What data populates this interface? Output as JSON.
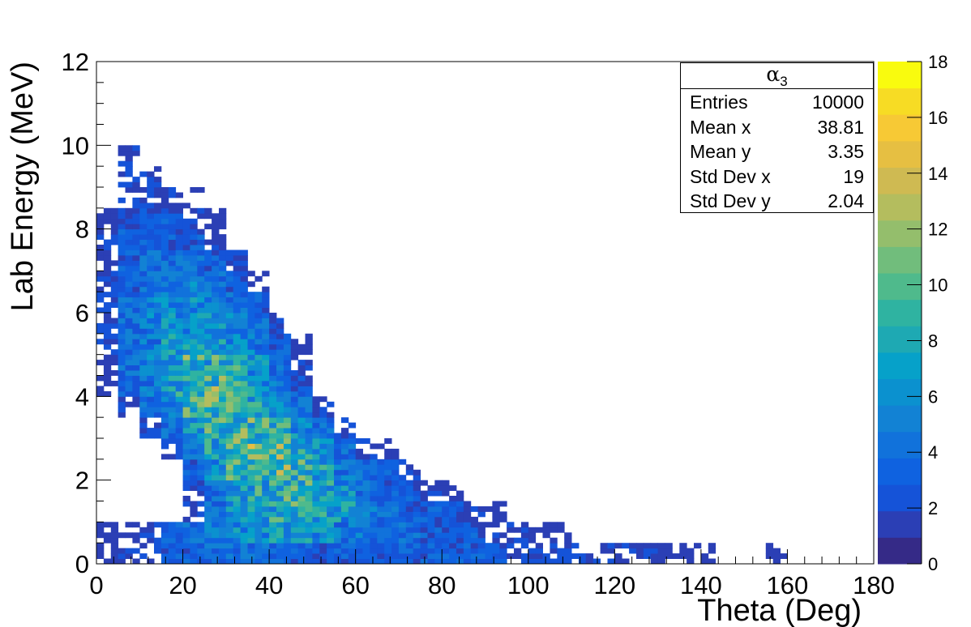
{
  "chart_data": {
    "type": "heatmap",
    "title": "α3",
    "xlabel": "Theta (Deg)",
    "ylabel": "Lab Energy (MeV)",
    "xlim": [
      0,
      180
    ],
    "ylim": [
      0,
      12
    ],
    "zlim": [
      0,
      18
    ],
    "x_ticks": [
      "0",
      "20",
      "40",
      "60",
      "80",
      "100",
      "120",
      "140",
      "160",
      "180"
    ],
    "y_ticks": [
      "0",
      "2",
      "4",
      "6",
      "8",
      "10",
      "12"
    ],
    "z_ticks": [
      "0",
      "2",
      "4",
      "6",
      "8",
      "10",
      "12",
      "14",
      "16",
      "18"
    ],
    "x_bin_width": 5,
    "y_bin_width": 0.5,
    "note": "approximate counts per fine bin, averaged over 5 deg x 0.5 MeV regions; rows from y=0 upward",
    "z": [
      [
        1,
        2,
        2,
        3,
        3,
        4,
        4,
        4,
        4,
        3,
        3,
        3,
        3,
        3,
        3,
        3,
        3,
        3,
        3,
        2,
        2,
        2,
        2,
        2,
        2,
        2,
        1,
        1,
        1,
        0,
        0,
        1,
        0,
        0,
        0,
        0
      ],
      [
        1,
        1,
        2,
        3,
        4,
        5,
        6,
        6,
        7,
        7,
        6,
        5,
        5,
        4,
        4,
        3,
        3,
        3,
        2,
        2,
        1,
        1,
        0,
        0,
        0,
        0,
        0,
        0,
        0,
        0,
        0,
        0,
        0,
        0,
        0,
        0
      ],
      [
        0,
        0,
        0,
        0,
        2,
        4,
        6,
        7,
        8,
        9,
        8,
        7,
        5,
        4,
        3,
        3,
        3,
        2,
        1,
        0,
        0,
        0,
        0,
        0,
        0,
        0,
        0,
        0,
        0,
        0,
        0,
        0,
        0,
        0,
        0,
        0
      ],
      [
        0,
        0,
        0,
        0,
        2,
        4,
        7,
        8,
        9,
        9,
        8,
        6,
        4,
        3,
        3,
        2,
        1,
        0,
        0,
        0,
        0,
        0,
        0,
        0,
        0,
        0,
        0,
        0,
        0,
        0,
        0,
        0,
        0,
        0,
        0,
        0
      ],
      [
        0,
        0,
        0,
        0,
        3,
        6,
        9,
        10,
        10,
        9,
        7,
        5,
        4,
        3,
        2,
        0,
        0,
        0,
        0,
        0,
        0,
        0,
        0,
        0,
        0,
        0,
        0,
        0,
        0,
        0,
        0,
        0,
        0,
        0,
        0,
        0
      ],
      [
        0,
        0,
        0,
        2,
        5,
        8,
        10,
        11,
        10,
        8,
        6,
        4,
        2,
        1,
        0,
        0,
        0,
        0,
        0,
        0,
        0,
        0,
        0,
        0,
        0,
        0,
        0,
        0,
        0,
        0,
        0,
        0,
        0,
        0,
        0,
        0
      ],
      [
        0,
        0,
        2,
        4,
        7,
        9,
        10,
        10,
        8,
        6,
        4,
        2,
        0,
        0,
        0,
        0,
        0,
        0,
        0,
        0,
        0,
        0,
        0,
        0,
        0,
        0,
        0,
        0,
        0,
        0,
        0,
        0,
        0,
        0,
        0,
        0
      ],
      [
        0,
        2,
        4,
        6,
        9,
        10,
        9,
        8,
        6,
        4,
        2,
        0,
        0,
        0,
        0,
        0,
        0,
        0,
        0,
        0,
        0,
        0,
        0,
        0,
        0,
        0,
        0,
        0,
        0,
        0,
        0,
        0,
        0,
        0,
        0,
        0
      ],
      [
        1,
        3,
        5,
        7,
        9,
        10,
        9,
        7,
        5,
        3,
        0,
        0,
        0,
        0,
        0,
        0,
        0,
        0,
        0,
        0,
        0,
        0,
        0,
        0,
        0,
        0,
        0,
        0,
        0,
        0,
        0,
        0,
        0,
        0,
        0,
        0
      ],
      [
        1,
        4,
        5,
        7,
        9,
        9,
        8,
        6,
        4,
        2,
        0,
        0,
        0,
        0,
        0,
        0,
        0,
        0,
        0,
        0,
        0,
        0,
        0,
        0,
        0,
        0,
        0,
        0,
        0,
        0,
        0,
        0,
        0,
        0,
        0,
        0
      ],
      [
        2,
        4,
        5,
        7,
        7,
        7,
        6,
        5,
        3,
        1,
        0,
        0,
        0,
        0,
        0,
        0,
        0,
        0,
        0,
        0,
        0,
        0,
        0,
        0,
        0,
        0,
        0,
        0,
        0,
        0,
        0,
        0,
        0,
        0,
        0,
        0
      ],
      [
        2,
        4,
        5,
        6,
        6,
        6,
        5,
        4,
        2,
        0,
        0,
        0,
        0,
        0,
        0,
        0,
        0,
        0,
        0,
        0,
        0,
        0,
        0,
        0,
        0,
        0,
        0,
        0,
        0,
        0,
        0,
        0,
        0,
        0,
        0,
        0
      ],
      [
        2,
        4,
        5,
        6,
        6,
        5,
        4,
        3,
        0,
        0,
        0,
        0,
        0,
        0,
        0,
        0,
        0,
        0,
        0,
        0,
        0,
        0,
        0,
        0,
        0,
        0,
        0,
        0,
        0,
        0,
        0,
        0,
        0,
        0,
        0,
        0
      ],
      [
        2,
        3,
        4,
        5,
        5,
        4,
        3,
        1,
        0,
        0,
        0,
        0,
        0,
        0,
        0,
        0,
        0,
        0,
        0,
        0,
        0,
        0,
        0,
        0,
        0,
        0,
        0,
        0,
        0,
        0,
        0,
        0,
        0,
        0,
        0,
        0
      ],
      [
        1,
        3,
        4,
        4,
        4,
        3,
        2,
        0,
        0,
        0,
        0,
        0,
        0,
        0,
        0,
        0,
        0,
        0,
        0,
        0,
        0,
        0,
        0,
        0,
        0,
        0,
        0,
        0,
        0,
        0,
        0,
        0,
        0,
        0,
        0,
        0
      ],
      [
        2,
        3,
        3,
        3,
        3,
        2,
        0,
        0,
        0,
        0,
        0,
        0,
        0,
        0,
        0,
        0,
        0,
        0,
        0,
        0,
        0,
        0,
        0,
        0,
        0,
        0,
        0,
        0,
        0,
        0,
        0,
        0,
        0,
        0,
        0,
        0
      ],
      [
        1,
        2,
        3,
        3,
        2,
        1,
        0,
        0,
        0,
        0,
        0,
        0,
        0,
        0,
        0,
        0,
        0,
        0,
        0,
        0,
        0,
        0,
        0,
        0,
        0,
        0,
        0,
        0,
        0,
        0,
        0,
        0,
        0,
        0,
        0,
        0
      ],
      [
        0,
        2,
        2,
        2,
        1,
        0,
        0,
        0,
        0,
        0,
        0,
        0,
        0,
        0,
        0,
        0,
        0,
        0,
        0,
        0,
        0,
        0,
        0,
        0,
        0,
        0,
        0,
        0,
        0,
        0,
        0,
        0,
        0,
        0,
        0,
        0
      ],
      [
        0,
        2,
        2,
        0,
        0,
        0,
        0,
        0,
        0,
        0,
        0,
        0,
        0,
        0,
        0,
        0,
        0,
        0,
        0,
        0,
        0,
        0,
        0,
        0,
        0,
        0,
        0,
        0,
        0,
        0,
        0,
        0,
        0,
        0,
        0,
        0
      ],
      [
        0,
        2,
        0,
        0,
        0,
        0,
        0,
        0,
        0,
        0,
        0,
        0,
        0,
        0,
        0,
        0,
        0,
        0,
        0,
        0,
        0,
        0,
        0,
        0,
        0,
        0,
        0,
        0,
        0,
        0,
        0,
        0,
        0,
        0,
        0,
        0
      ]
    ],
    "palette": [
      "#352a87",
      "#2b3fb5",
      "#1553d8",
      "#0f62e0",
      "#1172db",
      "#1282d4",
      "#0b91cf",
      "#06a1c9",
      "#1ea9b3",
      "#2fb3a1",
      "#4fba8c",
      "#71bd7c",
      "#94be6c",
      "#b4bd5e",
      "#cfba52",
      "#e6bf42",
      "#f7c935",
      "#f7dc24",
      "#f9fb0e"
    ]
  },
  "stats": {
    "title_main": "α",
    "title_sub": "3",
    "rows": [
      {
        "label": "Entries",
        "value": "10000"
      },
      {
        "label": "Mean x",
        "value": "38.81"
      },
      {
        "label": "Mean y",
        "value": "3.35"
      },
      {
        "label": "Std Dev x",
        "value": "19"
      },
      {
        "label": "Std Dev y",
        "value": "2.04"
      }
    ]
  }
}
